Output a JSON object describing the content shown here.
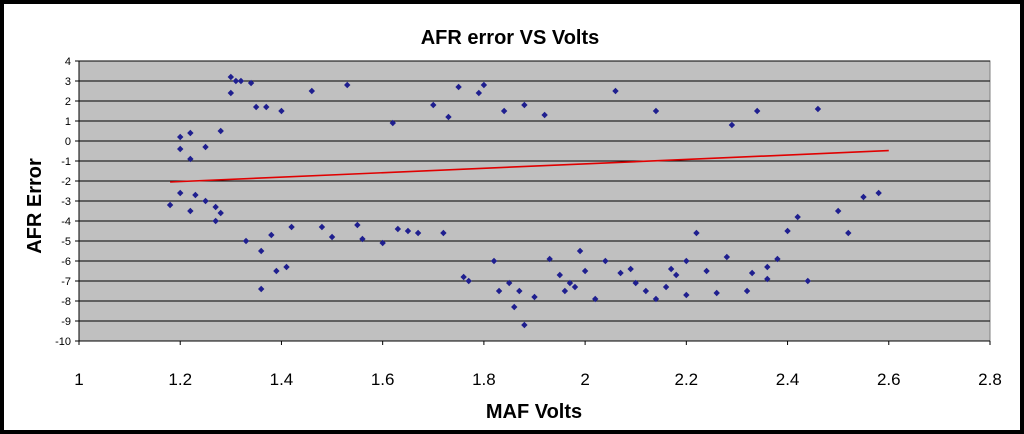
{
  "chart_data": {
    "type": "scatter",
    "title": "AFR error VS Volts",
    "xlabel": "MAF Volts",
    "ylabel": "AFR Error",
    "xlim": [
      1,
      2.8
    ],
    "ylim": [
      -10,
      4
    ],
    "x_ticks": [
      "1",
      "1.2",
      "1.4",
      "1.6",
      "1.8",
      "2",
      "2.2",
      "2.4",
      "2.6",
      "2.8"
    ],
    "y_ticks": [
      "4",
      "3",
      "2",
      "1",
      "0",
      "-1",
      "-2",
      "-3",
      "-4",
      "-5",
      "-6",
      "-7",
      "-8",
      "-9",
      "-10"
    ],
    "grid": "horizontal",
    "legend": "none",
    "plot_background": "#c0c0c0",
    "marker_color": "#1f1f8f",
    "trendline_color": "#e00000",
    "trendline": {
      "x": [
        1.18,
        2.6
      ],
      "y": [
        -2.05,
        -0.48
      ]
    },
    "series": [
      {
        "marker": "diamond",
        "points": [
          [
            1.18,
            -3.2
          ],
          [
            1.2,
            -2.6
          ],
          [
            1.2,
            -0.4
          ],
          [
            1.2,
            0.2
          ],
          [
            1.22,
            -3.5
          ],
          [
            1.22,
            0.4
          ],
          [
            1.22,
            -0.9
          ],
          [
            1.23,
            -2.7
          ],
          [
            1.25,
            -3.0
          ],
          [
            1.25,
            -0.3
          ],
          [
            1.27,
            -4.0
          ],
          [
            1.27,
            -3.3
          ],
          [
            1.28,
            -3.6
          ],
          [
            1.28,
            0.5
          ],
          [
            1.3,
            3.2
          ],
          [
            1.3,
            2.4
          ],
          [
            1.31,
            3.0
          ],
          [
            1.32,
            3.0
          ],
          [
            1.33,
            -5.0
          ],
          [
            1.34,
            2.9
          ],
          [
            1.35,
            1.7
          ],
          [
            1.36,
            -5.5
          ],
          [
            1.36,
            -7.4
          ],
          [
            1.37,
            1.7
          ],
          [
            1.38,
            -4.7
          ],
          [
            1.39,
            -6.5
          ],
          [
            1.4,
            1.5
          ],
          [
            1.41,
            -6.3
          ],
          [
            1.42,
            -4.3
          ],
          [
            1.46,
            2.5
          ],
          [
            1.48,
            -4.3
          ],
          [
            1.5,
            -4.8
          ],
          [
            1.53,
            2.8
          ],
          [
            1.55,
            -4.2
          ],
          [
            1.56,
            -4.9
          ],
          [
            1.6,
            -5.1
          ],
          [
            1.62,
            0.9
          ],
          [
            1.63,
            -4.4
          ],
          [
            1.65,
            -4.5
          ],
          [
            1.67,
            -4.6
          ],
          [
            1.7,
            1.8
          ],
          [
            1.72,
            -4.6
          ],
          [
            1.73,
            1.2
          ],
          [
            1.75,
            2.7
          ],
          [
            1.76,
            -6.8
          ],
          [
            1.77,
            -7.0
          ],
          [
            1.79,
            2.4
          ],
          [
            1.8,
            2.8
          ],
          [
            1.82,
            -6.0
          ],
          [
            1.83,
            -7.5
          ],
          [
            1.84,
            1.5
          ],
          [
            1.85,
            -7.1
          ],
          [
            1.86,
            -8.3
          ],
          [
            1.87,
            -7.5
          ],
          [
            1.88,
            -9.2
          ],
          [
            1.88,
            1.8
          ],
          [
            1.9,
            -7.8
          ],
          [
            1.92,
            1.3
          ],
          [
            1.93,
            -5.9
          ],
          [
            1.95,
            -6.7
          ],
          [
            1.96,
            -7.5
          ],
          [
            1.97,
            -7.1
          ],
          [
            1.98,
            -7.3
          ],
          [
            1.99,
            -5.5
          ],
          [
            2.0,
            -6.5
          ],
          [
            2.02,
            -7.9
          ],
          [
            2.04,
            -6.0
          ],
          [
            2.06,
            2.5
          ],
          [
            2.07,
            -6.6
          ],
          [
            2.09,
            -6.4
          ],
          [
            2.1,
            -7.1
          ],
          [
            2.12,
            -7.5
          ],
          [
            2.14,
            1.5
          ],
          [
            2.14,
            -7.9
          ],
          [
            2.16,
            -7.3
          ],
          [
            2.17,
            -6.4
          ],
          [
            2.18,
            -6.7
          ],
          [
            2.2,
            -7.7
          ],
          [
            2.2,
            -6.0
          ],
          [
            2.22,
            -4.6
          ],
          [
            2.24,
            -6.5
          ],
          [
            2.26,
            -7.6
          ],
          [
            2.28,
            -5.8
          ],
          [
            2.29,
            0.8
          ],
          [
            2.32,
            -7.5
          ],
          [
            2.33,
            -6.6
          ],
          [
            2.34,
            1.5
          ],
          [
            2.36,
            -6.3
          ],
          [
            2.36,
            -6.9
          ],
          [
            2.38,
            -5.9
          ],
          [
            2.4,
            -4.5
          ],
          [
            2.42,
            -3.8
          ],
          [
            2.44,
            -7.0
          ],
          [
            2.46,
            1.6
          ],
          [
            2.5,
            -3.5
          ],
          [
            2.52,
            -4.6
          ],
          [
            2.55,
            -2.8
          ],
          [
            2.58,
            -2.6
          ]
        ]
      }
    ]
  }
}
